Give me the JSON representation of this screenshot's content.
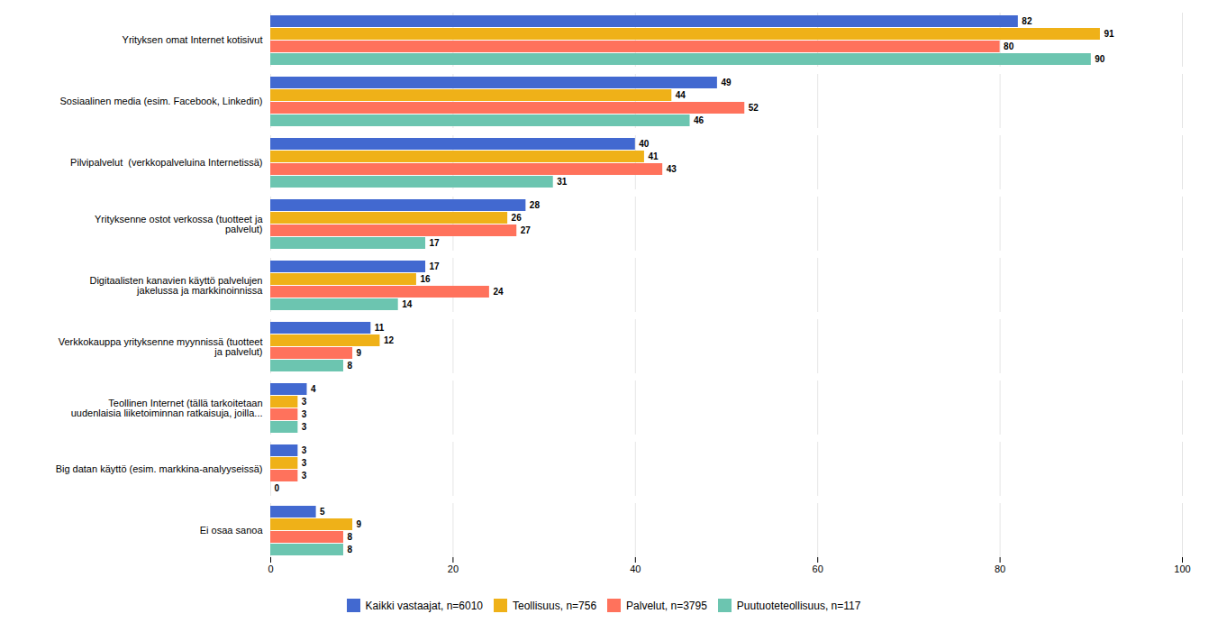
{
  "chart_data": {
    "type": "bar",
    "orientation": "horizontal",
    "categories": [
      "Yrityksen omat Internet kotisivut",
      "Sosiaalinen media (esim. Facebook, Linkedin)",
      "Pilvipalvelut  (verkkopalveluina Internetissä)",
      "Yrityksenne ostot verkossa (tuotteet ja\npalvelut)",
      "Digitaalisten kanavien käyttö palvelujen\njakelussa ja markkinoinnissa",
      "Verkkokauppa yrityksenne myynnissä (tuotteet\nja palvelut)",
      "Teollinen Internet (tällä tarkoitetaan\nuudenlaisia liiketoiminnan ratkaisuja, joilla...",
      "Big datan käyttö (esim. markkina-analyyseissä)",
      "Ei osaa sanoa"
    ],
    "series": [
      {
        "name": "Kaikki vastaajat, n=6010",
        "values": [
          82,
          49,
          40,
          28,
          17,
          11,
          4,
          3,
          5
        ]
      },
      {
        "name": "Teollisuus, n=756",
        "values": [
          91,
          44,
          41,
          26,
          16,
          12,
          3,
          3,
          9
        ]
      },
      {
        "name": "Palvelut, n=3795",
        "values": [
          80,
          52,
          43,
          27,
          24,
          9,
          3,
          3,
          8
        ]
      },
      {
        "name": "Puutuoteteollisuus, n=117",
        "values": [
          90,
          46,
          31,
          17,
          14,
          8,
          3,
          0,
          8
        ]
      }
    ],
    "xlim": [
      0,
      100
    ],
    "xticks": [
      0,
      20,
      40,
      60,
      80,
      100
    ],
    "grid": true,
    "legend": "bottom",
    "data_labels": true
  }
}
